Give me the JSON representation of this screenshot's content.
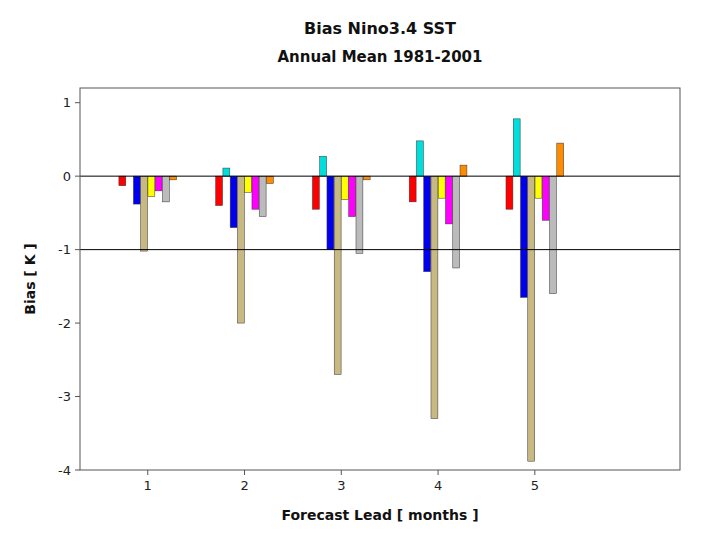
{
  "chart_data": {
    "type": "bar",
    "title": "Bias Nino3.4 SST",
    "subtitle": "Annual Mean 1981-2001",
    "x_label": "Forecast Lead [ months ]",
    "y_label": "Bias [ K ]",
    "x": [
      1,
      2,
      3,
      4,
      5
    ],
    "xlim": [
      0.3,
      6.5
    ],
    "xticks": [
      1,
      2,
      3,
      4,
      5
    ],
    "ylim": [
      -4.0,
      1.2
    ],
    "yticks": [
      -4,
      -3,
      -2,
      -1,
      0,
      1
    ],
    "grid": false,
    "reference_lines": [
      0,
      -1
    ],
    "series": [
      {
        "color": "#FF0000",
        "values": [
          -0.13,
          -0.4,
          -0.45,
          -0.35,
          -0.45
        ]
      },
      {
        "color": "#00DDDD",
        "values": [
          0.0,
          0.11,
          0.27,
          0.48,
          0.78
        ]
      },
      {
        "color": "#0000EE",
        "values": [
          -0.38,
          -0.7,
          -1.0,
          -1.3,
          -1.65
        ]
      },
      {
        "color": "#C8B882",
        "values": [
          -1.02,
          -2.0,
          -2.7,
          -3.3,
          -3.88
        ]
      },
      {
        "color": "#FFFF00",
        "values": [
          -0.28,
          -0.22,
          -0.32,
          -0.3,
          -0.3
        ]
      },
      {
        "color": "#FF00FF",
        "values": [
          -0.2,
          -0.45,
          -0.55,
          -0.65,
          -0.6
        ]
      },
      {
        "color": "#BBBBBB",
        "values": [
          -0.35,
          -0.55,
          -1.05,
          -1.25,
          -1.6
        ]
      },
      {
        "color": "#FF8C00",
        "values": [
          -0.05,
          -0.1,
          -0.05,
          0.15,
          0.45
        ]
      }
    ]
  }
}
